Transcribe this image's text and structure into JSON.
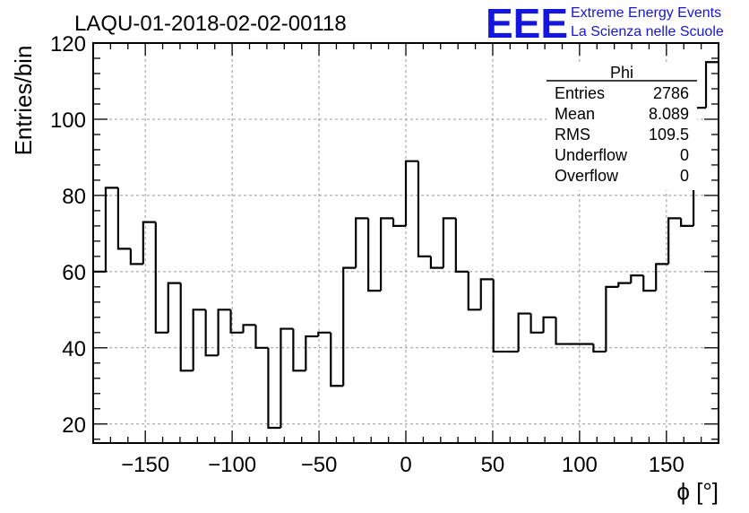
{
  "header": {
    "title": "LAQU-01-2018-02-02-00118",
    "logo_text": "EEE",
    "logo_line1": "Extreme Energy Events",
    "logo_line2": "La Scienza nelle Scuole",
    "logo_color": "#1515e0"
  },
  "stats_box": {
    "name": "Phi",
    "rows": [
      {
        "label": "Entries",
        "value": "2786"
      },
      {
        "label": "Mean",
        "value": "8.089"
      },
      {
        "label": "RMS",
        "value": "109.5"
      },
      {
        "label": "Underflow",
        "value": "0"
      },
      {
        "label": "Overflow",
        "value": "0"
      }
    ]
  },
  "chart_data": {
    "type": "histogram",
    "title": "LAQU-01-2018-02-02-00118",
    "xlabel": "ϕ [°]",
    "ylabel": "Entries/bin",
    "xlim": [
      -180,
      180
    ],
    "ylim": [
      15,
      120
    ],
    "grid": true,
    "bin_width": 7.2,
    "bin_edges_start": -180,
    "x_ticks": [
      -150,
      -100,
      -50,
      0,
      50,
      100,
      150
    ],
    "x_tick_labels": [
      "−150",
      "−100",
      "−50",
      "0",
      "50",
      "100",
      "150"
    ],
    "y_ticks": [
      20,
      40,
      60,
      80,
      100,
      120
    ],
    "y_tick_labels": [
      "20",
      "40",
      "60",
      "80",
      "100",
      "120"
    ],
    "values": [
      60,
      82,
      66,
      62,
      73,
      44,
      57,
      34,
      50,
      38,
      50,
      44,
      46,
      40,
      19,
      45,
      34,
      43,
      44,
      30,
      61,
      74,
      55,
      74,
      72,
      89,
      64,
      61,
      74,
      60,
      50,
      58,
      39,
      39,
      49,
      44,
      48,
      41,
      41,
      41,
      39,
      56,
      57,
      59,
      55,
      62,
      74,
      72,
      103,
      115
    ]
  }
}
